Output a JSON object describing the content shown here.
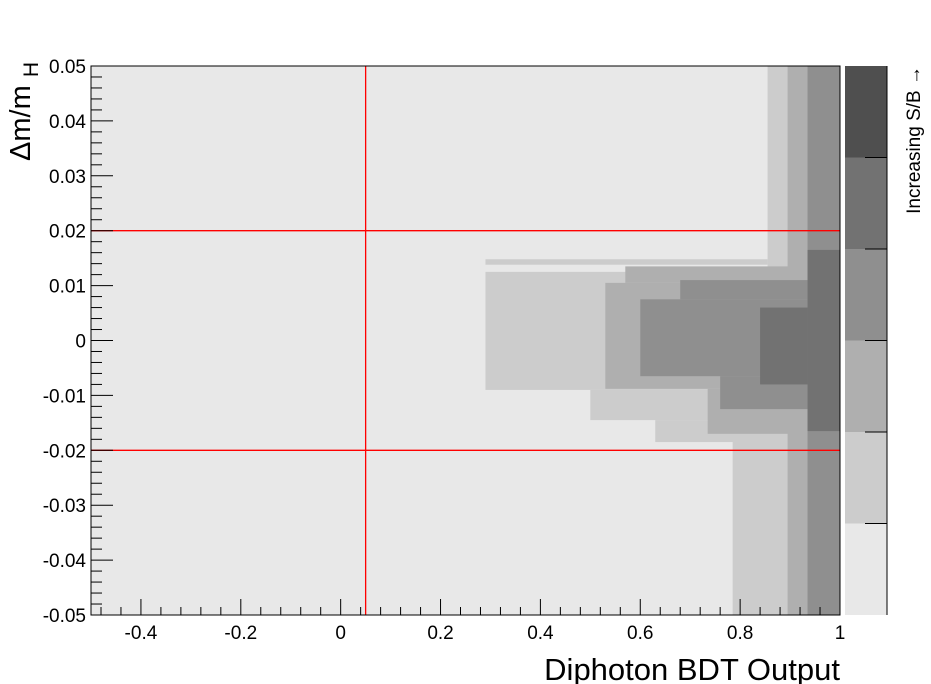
{
  "chart_data": {
    "type": "heatmap",
    "xlabel": "Diphoton BDT Output",
    "ylabel": "Δm/m",
    "ylabel_sub": "H",
    "zlabel": "Increasing S/B →",
    "xlim": [
      -0.5,
      1.0
    ],
    "ylim": [
      -0.05,
      0.05
    ],
    "x_ticks": [
      "-0.4",
      "-0.2",
      "0",
      "0.2",
      "0.4",
      "0.6",
      "0.8",
      "1"
    ],
    "x_tick_values": [
      -0.4,
      -0.2,
      0,
      0.2,
      0.4,
      0.6,
      0.8,
      1.0
    ],
    "y_ticks": [
      "-0.05",
      "-0.04",
      "-0.03",
      "-0.02",
      "-0.01",
      "0",
      "0.01",
      "0.02",
      "0.03",
      "0.04",
      "0.05"
    ],
    "y_tick_values": [
      -0.05,
      -0.04,
      -0.03,
      -0.02,
      -0.01,
      0,
      0.01,
      0.02,
      0.03,
      0.04,
      0.05
    ],
    "color_levels": [
      "#e8e8e8",
      "#cccccc",
      "#afafaf",
      "#8f8f8f",
      "#727272",
      "#4f4f4f"
    ],
    "background_level": 0,
    "regions": [
      {
        "x": [
          0.855,
          1.0
        ],
        "y": [
          -0.05,
          0.05
        ],
        "level": 1
      },
      {
        "x": [
          0.785,
          1.0
        ],
        "y": [
          -0.05,
          -0.017
        ],
        "level": 1
      },
      {
        "x": [
          0.29,
          0.855
        ],
        "y": [
          -0.009,
          0.0125
        ],
        "level": 1
      },
      {
        "x": [
          0.29,
          0.855
        ],
        "y": [
          0.0138,
          0.0148
        ],
        "level": 1
      },
      {
        "x": [
          0.5,
          0.855
        ],
        "y": [
          -0.0145,
          -0.009
        ],
        "level": 1
      },
      {
        "x": [
          0.63,
          0.855
        ],
        "y": [
          -0.0185,
          -0.0145
        ],
        "level": 1
      },
      {
        "x": [
          0.895,
          1.0
        ],
        "y": [
          -0.05,
          0.05
        ],
        "level": 2
      },
      {
        "x": [
          0.53,
          0.93
        ],
        "y": [
          -0.0088,
          0.0105
        ],
        "level": 2
      },
      {
        "x": [
          0.57,
          0.93
        ],
        "y": [
          0.0105,
          0.0135
        ],
        "level": 2
      },
      {
        "x": [
          0.735,
          0.93
        ],
        "y": [
          -0.017,
          -0.0088
        ],
        "level": 2
      },
      {
        "x": [
          0.935,
          1.0
        ],
        "y": [
          -0.05,
          0.05
        ],
        "level": 3
      },
      {
        "x": [
          0.6,
          0.935
        ],
        "y": [
          -0.0065,
          0.0075
        ],
        "level": 3
      },
      {
        "x": [
          0.68,
          0.935
        ],
        "y": [
          0.0075,
          0.011
        ],
        "level": 3
      },
      {
        "x": [
          0.76,
          0.935
        ],
        "y": [
          -0.0125,
          -0.0065
        ],
        "level": 3
      },
      {
        "x": [
          0.935,
          1.0
        ],
        "y": [
          -0.0165,
          0.0165
        ],
        "level": 4
      },
      {
        "x": [
          0.84,
          0.935
        ],
        "y": [
          -0.008,
          0.006
        ],
        "level": 4
      }
    ],
    "cut_lines": {
      "x": [
        0.05
      ],
      "y": [
        -0.02,
        0.02
      ]
    },
    "cut_color": "#ff0000"
  }
}
